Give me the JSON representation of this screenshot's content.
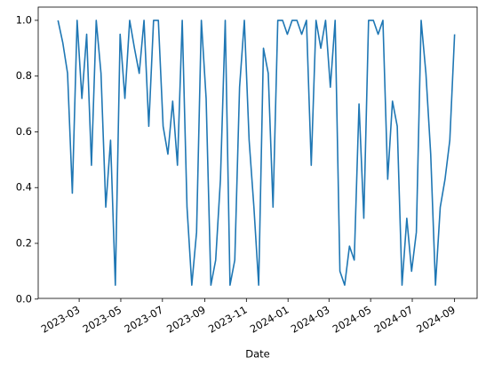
{
  "chart_data": {
    "type": "line",
    "x_label": "Date",
    "x": [
      "2023-01-29",
      "2023-02-05",
      "2023-02-12",
      "2023-02-19",
      "2023-02-26",
      "2023-03-05",
      "2023-03-12",
      "2023-03-19",
      "2023-03-26",
      "2023-04-02",
      "2023-04-09",
      "2023-04-16",
      "2023-04-23",
      "2023-04-30",
      "2023-05-07",
      "2023-05-14",
      "2023-05-21",
      "2023-05-28",
      "2023-06-04",
      "2023-06-11",
      "2023-06-18",
      "2023-06-25",
      "2023-07-02",
      "2023-07-09",
      "2023-07-16",
      "2023-07-23",
      "2023-07-30",
      "2023-08-06",
      "2023-08-13",
      "2023-08-20",
      "2023-08-27",
      "2023-09-03",
      "2023-09-10",
      "2023-09-17",
      "2023-09-24",
      "2023-10-01",
      "2023-10-08",
      "2023-10-15",
      "2023-10-22",
      "2023-10-29",
      "2023-11-05",
      "2023-11-12",
      "2023-11-19",
      "2023-11-26",
      "2023-12-03",
      "2023-12-10",
      "2023-12-17",
      "2023-12-24",
      "2023-12-31",
      "2024-01-07",
      "2024-01-14",
      "2024-01-21",
      "2024-01-28",
      "2024-02-04",
      "2024-02-11",
      "2024-02-18",
      "2024-02-25",
      "2024-03-03",
      "2024-03-10",
      "2024-03-17",
      "2024-03-24",
      "2024-03-31",
      "2024-04-07",
      "2024-04-14",
      "2024-04-21",
      "2024-04-28",
      "2024-05-05",
      "2024-05-12",
      "2024-05-19",
      "2024-05-26",
      "2024-06-02",
      "2024-06-09",
      "2024-06-16",
      "2024-06-23",
      "2024-06-30",
      "2024-07-07",
      "2024-07-14",
      "2024-07-21",
      "2024-07-28",
      "2024-08-04",
      "2024-08-11",
      "2024-08-18",
      "2024-08-25",
      "2024-09-01"
    ],
    "series": [
      {
        "color": "#1f77b4",
        "values": [
          1.0,
          0.92,
          0.81,
          0.38,
          1.0,
          0.72,
          0.95,
          0.48,
          1.0,
          0.81,
          0.33,
          0.57,
          0.05,
          0.95,
          0.72,
          1.0,
          0.9,
          0.81,
          1.0,
          0.62,
          1.0,
          1.0,
          0.62,
          0.52,
          0.71,
          0.48,
          1.0,
          0.33,
          0.05,
          0.24,
          1.0,
          0.72,
          0.05,
          0.14,
          0.43,
          1.0,
          0.05,
          0.14,
          0.76,
          1.0,
          0.57,
          0.33,
          0.05,
          0.9,
          0.81,
          0.33,
          1.0,
          1.0,
          0.95,
          1.0,
          1.0,
          0.95,
          1.0,
          0.48,
          1.0,
          0.9,
          1.0,
          0.76,
          1.0,
          0.1,
          0.05,
          0.19,
          0.14,
          0.7,
          0.29,
          1.0,
          1.0,
          0.95,
          1.0,
          0.43,
          0.71,
          0.62,
          0.05,
          0.29,
          0.1,
          0.24,
          1.0,
          0.81,
          0.52,
          0.05,
          0.33,
          0.43,
          0.57,
          0.95
        ]
      }
    ],
    "xlim": [
      "2022-12-31",
      "2024-10-04"
    ],
    "xticks": [
      "2023-03",
      "2023-05",
      "2023-07",
      "2023-09",
      "2023-11",
      "2024-01",
      "2024-03",
      "2024-05",
      "2024-07",
      "2024-09"
    ],
    "ylim": [
      0.0025,
      1.0475
    ],
    "yticks": [
      {
        "value": 0,
        "label": "0.0"
      },
      0.2,
      0.4,
      0.6,
      0.8,
      {
        "value": 1,
        "label": "1.0"
      }
    ],
    "grid": false
  }
}
